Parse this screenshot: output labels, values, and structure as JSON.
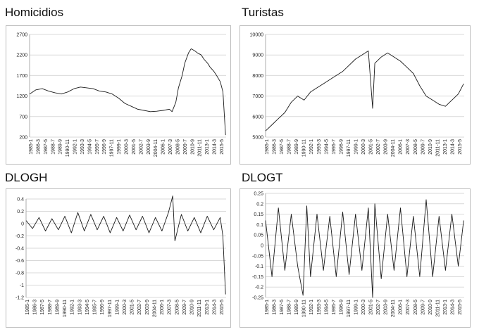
{
  "chart_data": [
    {
      "id": "homicidios",
      "type": "line",
      "title": "Homicidios",
      "ylim": [
        200,
        2700
      ],
      "yticks": [
        200,
        700,
        1200,
        1700,
        2200,
        2700
      ],
      "ytick_labels": [
        "200",
        "700",
        "1200",
        "1700",
        "2200",
        "2700"
      ],
      "x_tick_labels": [
        "1985-1",
        "1986-3",
        "1987-5",
        "1988-7",
        "1989-9",
        "1990-11",
        "1992-1",
        "1993-3",
        "1994-5",
        "1995-7",
        "1996-9",
        "1997-11",
        "1999-1",
        "2000-3",
        "2001-5",
        "2002-7",
        "2003-9",
        "2004-11",
        "2006-1",
        "2007-3",
        "2008-5",
        "2009-7",
        "2010-9",
        "2011-11",
        "2013-1",
        "2014-3",
        "2015-5"
      ],
      "grid": true,
      "series": [
        {
          "x": [
            "1985-1",
            "1986-1",
            "1987-1",
            "1988-1",
            "1989-1",
            "1990-1",
            "1991-1",
            "1992-1",
            "1993-1",
            "1994-1",
            "1995-1",
            "1996-1",
            "1997-1",
            "1998-1",
            "1999-1",
            "2000-1",
            "2001-1",
            "2002-1",
            "2003-1",
            "2004-1",
            "2005-1",
            "2006-1",
            "2007-1",
            "2007-6",
            "2008-1",
            "2008-6",
            "2009-1",
            "2009-6",
            "2010-1",
            "2010-6",
            "2011-1",
            "2011-6",
            "2012-1",
            "2012-6",
            "2013-1",
            "2013-6",
            "2014-1",
            "2014-6",
            "2015-1",
            "2015-6",
            "2015-11"
          ],
          "values": [
            1250,
            1350,
            1380,
            1320,
            1280,
            1250,
            1300,
            1380,
            1420,
            1400,
            1380,
            1320,
            1300,
            1250,
            1150,
            1020,
            950,
            880,
            850,
            820,
            830,
            850,
            880,
            820,
            1050,
            1400,
            1700,
            2000,
            2250,
            2350,
            2300,
            2250,
            2200,
            2100,
            2000,
            1900,
            1800,
            1700,
            1550,
            1300,
            250
          ]
        }
      ]
    },
    {
      "id": "turistas",
      "type": "line",
      "title": "Turistas",
      "ylim": [
        5000,
        10000
      ],
      "yticks": [
        5000,
        6000,
        7000,
        8000,
        9000,
        10000
      ],
      "ytick_labels": [
        "5000",
        "6000",
        "7000",
        "8000",
        "9000",
        "10000"
      ],
      "x_tick_labels": [
        "1985-1",
        "1986-3",
        "1987-5",
        "1988-7",
        "1989-9",
        "1990-11",
        "1992-1",
        "1993-3",
        "1994-5",
        "1995-7",
        "1996-9",
        "1997-11",
        "1999-1",
        "2000-3",
        "2001-5",
        "2002-7",
        "2003-9",
        "2004-11",
        "2006-1",
        "2007-3",
        "2008-5",
        "2009-7",
        "2010-9",
        "2011-11",
        "2013-1",
        "2014-3",
        "2015-5"
      ],
      "grid": true,
      "series": [
        {
          "x": [
            "1985-1",
            "1986-1",
            "1987-1",
            "1988-1",
            "1989-1",
            "1990-1",
            "1991-1",
            "1992-1",
            "1993-1",
            "1994-1",
            "1995-1",
            "1996-1",
            "1997-1",
            "1998-1",
            "1999-1",
            "2000-1",
            "2001-1",
            "2001-9",
            "2002-1",
            "2003-1",
            "2004-1",
            "2005-1",
            "2006-1",
            "2007-1",
            "2008-1",
            "2009-1",
            "2010-1",
            "2011-1",
            "2012-1",
            "2013-1",
            "2014-1",
            "2015-1",
            "2015-11"
          ],
          "values": [
            5300,
            5600,
            5900,
            6200,
            6700,
            7000,
            6800,
            7200,
            7400,
            7600,
            7800,
            8000,
            8200,
            8500,
            8800,
            9000,
            9200,
            6400,
            8600,
            8900,
            9100,
            8900,
            8700,
            8400,
            8100,
            7500,
            7000,
            6800,
            6600,
            6500,
            6800,
            7100,
            7600
          ]
        }
      ]
    },
    {
      "id": "dlogh",
      "type": "line",
      "title": "DLOGH",
      "ylim": [
        -1.2,
        0.4
      ],
      "yticks": [
        -1.2,
        -1.0,
        -0.8,
        -0.6,
        -0.4,
        -0.2,
        0,
        0.2,
        0.4
      ],
      "ytick_labels": [
        "-1.2",
        "-1",
        "-0.8",
        "-0.6",
        "-0.4",
        "-0.2",
        "0",
        "0.2",
        "0.4"
      ],
      "x_tick_labels": [
        "1985-1",
        "1986-3",
        "1987-5",
        "1988-7",
        "1989-9",
        "1990-11",
        "1992-1",
        "1993-3",
        "1994-5",
        "1995-7",
        "1996-9",
        "1997-11",
        "1999-1",
        "2000-3",
        "2001-5",
        "2002-7",
        "2003-9",
        "2004-11",
        "2006-1",
        "2007-3",
        "2008-5",
        "2009-7",
        "2010-9",
        "2011-11",
        "2013-1",
        "2014-3",
        "2015-5"
      ],
      "grid": true,
      "series": [
        {
          "x": [
            "1985-1",
            "1986-1",
            "1987-1",
            "1988-1",
            "1989-1",
            "1990-1",
            "1991-1",
            "1992-1",
            "1993-1",
            "1994-1",
            "1995-1",
            "1996-1",
            "1997-1",
            "1998-1",
            "1999-1",
            "2000-1",
            "2001-1",
            "2002-1",
            "2003-1",
            "2004-1",
            "2005-1",
            "2006-1",
            "2007-1",
            "2007-9",
            "2008-1",
            "2009-1",
            "2010-1",
            "2011-1",
            "2012-1",
            "2013-1",
            "2014-1",
            "2015-1",
            "2015-6",
            "2015-11"
          ],
          "values": [
            0.05,
            -0.08,
            0.1,
            -0.12,
            0.08,
            -0.1,
            0.12,
            -0.15,
            0.18,
            -0.12,
            0.15,
            -0.1,
            0.12,
            -0.15,
            0.1,
            -0.12,
            0.14,
            -0.1,
            0.12,
            -0.15,
            0.1,
            -0.12,
            0.18,
            0.45,
            -0.28,
            0.15,
            -0.12,
            0.1,
            -0.15,
            0.12,
            -0.1,
            0.1,
            -0.2,
            -1.15
          ]
        }
      ]
    },
    {
      "id": "dlogt",
      "type": "line",
      "title": "DLOGT",
      "ylim": [
        -0.25,
        0.25
      ],
      "yticks": [
        -0.25,
        -0.2,
        -0.15,
        -0.1,
        -0.05,
        0,
        0.05,
        0.1,
        0.15,
        0.2,
        0.25
      ],
      "ytick_labels": [
        "-0.25",
        "-0.2",
        "-0.15",
        "-0.1",
        "-0.05",
        "0",
        "0.05",
        "0.1",
        "0.15",
        "0.2",
        "0.25"
      ],
      "x_tick_labels": [
        "1985-1",
        "1986-3",
        "1987-5",
        "1988-7",
        "1989-9",
        "1990-11",
        "1992-1",
        "1993-3",
        "1994-5",
        "1995-7",
        "1996-9",
        "1997-11",
        "1999-1",
        "2000-3",
        "2001-5",
        "2002-7",
        "2003-9",
        "2004-11",
        "2006-1",
        "2007-3",
        "2008-5",
        "2009-7",
        "2010-9",
        "2011-11",
        "2013-1",
        "2014-3",
        "2015-5"
      ],
      "grid": true,
      "series": [
        {
          "x": [
            "1985-1",
            "1986-1",
            "1987-1",
            "1988-1",
            "1989-1",
            "1990-1",
            "1990-11",
            "1991-6",
            "1992-1",
            "1993-1",
            "1994-1",
            "1995-1",
            "1996-1",
            "1997-1",
            "1998-1",
            "1999-1",
            "2000-1",
            "2001-1",
            "2001-9",
            "2002-1",
            "2003-1",
            "2004-1",
            "2005-1",
            "2006-1",
            "2007-1",
            "2008-1",
            "2009-1",
            "2010-1",
            "2011-1",
            "2012-1",
            "2013-1",
            "2014-1",
            "2015-1",
            "2015-11"
          ],
          "values": [
            0.12,
            -0.15,
            0.18,
            -0.12,
            0.15,
            -0.1,
            -0.24,
            0.19,
            -0.15,
            0.15,
            -0.12,
            0.14,
            -0.15,
            0.16,
            -0.14,
            0.15,
            -0.12,
            0.18,
            -0.25,
            0.2,
            -0.16,
            0.15,
            -0.12,
            0.18,
            -0.15,
            0.14,
            -0.15,
            0.22,
            -0.15,
            0.14,
            -0.12,
            0.15,
            -0.1,
            0.12
          ]
        }
      ]
    }
  ]
}
